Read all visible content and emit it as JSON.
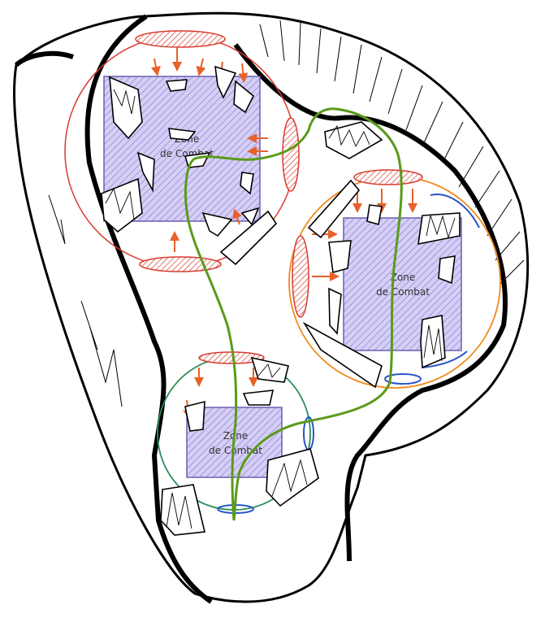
{
  "zones": [
    {
      "line1": "Zone",
      "line2": "de Combat"
    },
    {
      "line1": "Zone",
      "line2": "de Combat"
    },
    {
      "line1": "Zone",
      "line2": "de Combat"
    }
  ],
  "colors": {
    "outline": "#000000",
    "zone_fill": "#cfc7f2",
    "zone_stroke": "#6a5fb0",
    "spawn_circle": "#d83a2e",
    "orange_circle": "#f08a1c",
    "green_circle": "#2e8b57",
    "path_green": "#5a9a1a",
    "blue_marker": "#2a55c8"
  },
  "icons": [
    "rock-icon",
    "spike-icon",
    "arrow-icon"
  ]
}
